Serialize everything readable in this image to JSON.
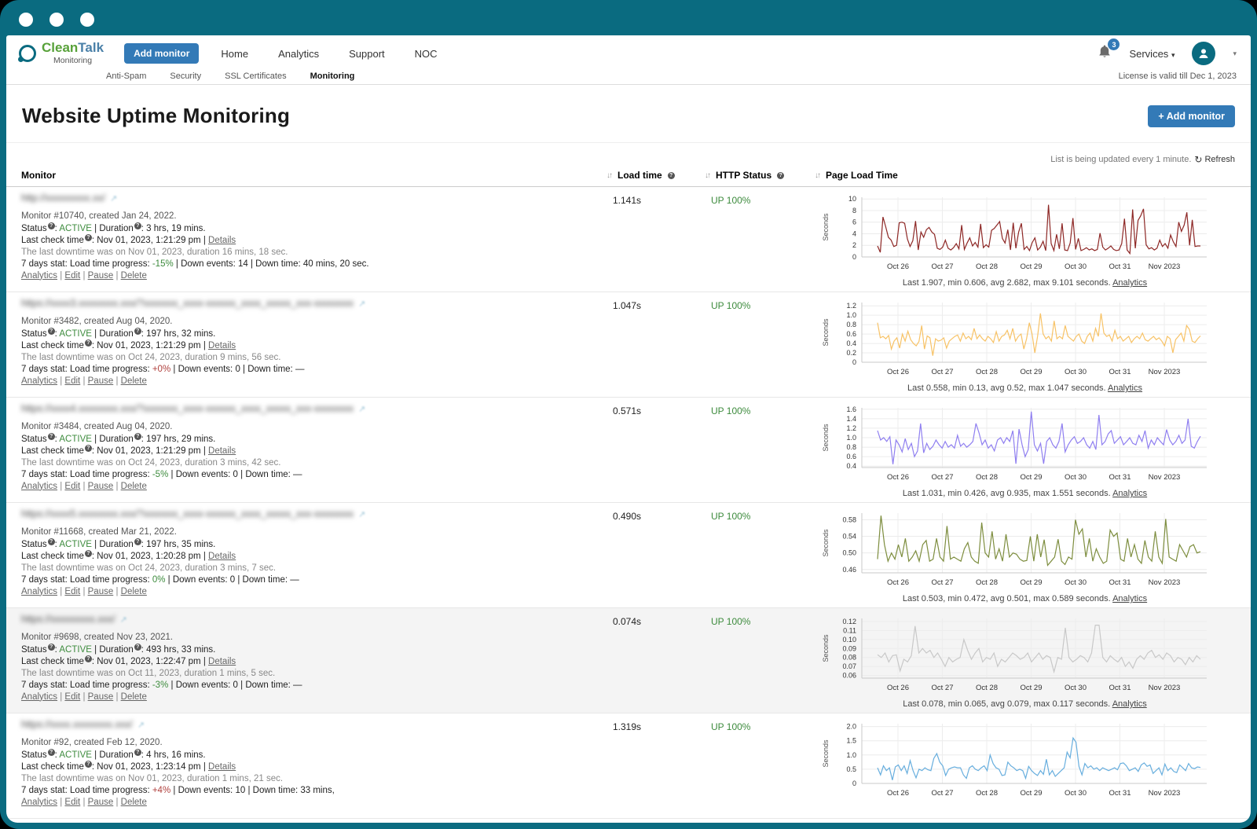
{
  "window": {
    "controls": [
      "close",
      "minimize",
      "maximize"
    ]
  },
  "icons": {
    "info": "?",
    "external_link": "↗",
    "sort": "↓↑",
    "caret": "▾",
    "plus": "+",
    "refresh": "↻",
    "bell": "bell-icon",
    "user": "user-icon"
  },
  "colors": {
    "frame": "#0a6b80",
    "accent_blue": "#337ab7",
    "brand_green": "#57a139",
    "brand_blue": "#4a80a8",
    "status_green": "#3d8b3d",
    "progress_red": "#b0413e"
  },
  "header": {
    "logo": {
      "part1": "Clean",
      "part2": "Talk",
      "subtitle": "Monitoring"
    },
    "add_monitor_button": "Add monitor",
    "nav": [
      "Home",
      "Analytics",
      "Support",
      "NOC"
    ],
    "notifications_count": "3",
    "services_label": "Services"
  },
  "subnav": {
    "items": [
      "Anti-Spam",
      "Security",
      "SSL Certificates",
      "Monitoring"
    ],
    "active": "Monitoring",
    "license_text": "License is valid till Dec 1, 2023"
  },
  "page": {
    "title": "Website Uptime Monitoring",
    "add_monitor_button": "Add monitor",
    "refresh_note": "List is being updated every 1 minute.",
    "refresh_label": "Refresh"
  },
  "table_headers": {
    "monitor": "Monitor",
    "load_time": "Load time",
    "http_status": "HTTP Status",
    "page_load": "Page Load Time"
  },
  "row_labels": {
    "status": "Status",
    "duration": "Duration",
    "last_check": "Last check time",
    "details": "Details",
    "stat_prefix": "7 days stat: Load time progress:",
    "down_events": "Down events:",
    "down_time": "Down time:",
    "links": [
      "Analytics",
      "Edit",
      "Pause",
      "Delete"
    ]
  },
  "monitors": [
    {
      "url_blur": "http://xxxxxxxxx.xx/",
      "info": "Monitor #10740, created Jan 24, 2022.",
      "status": "ACTIVE",
      "duration": "3 hrs, 19 mins.",
      "last_check": "Nov 01, 2023, 1:21:29 pm",
      "downtime": "The last downtime was on Nov 01, 2023, duration 16 mins, 18 sec.",
      "progress": "-15%",
      "progress_color": "green",
      "down_events": "14",
      "down_time": "40 mins, 20 sec.",
      "load_time": "1.141s",
      "http_status": "UP 100%",
      "highlighted": false
    },
    {
      "url_blur": "https://xxxx3.xxxxxxxx.xxx/?xxxxxxx_xxxx-xxxxxx_xxxx_xxxxx_xxx-xxxxxxxx",
      "info": "Monitor #3482, created Aug 04, 2020.",
      "status": "ACTIVE",
      "duration": "197 hrs, 32 mins.",
      "last_check": "Nov 01, 2023, 1:21:29 pm",
      "downtime": "The last downtime was on Oct 24, 2023, duration 9 mins, 56 sec.",
      "progress": "+0%",
      "progress_color": "red",
      "down_events": "0",
      "down_time": "—",
      "load_time": "1.047s",
      "http_status": "UP 100%",
      "highlighted": false
    },
    {
      "url_blur": "https://xxxx4.xxxxxxxx.xxx/?xxxxxxx_xxxx-xxxxxx_xxxx_xxxxx_xxx-xxxxxxxx",
      "info": "Monitor #3484, created Aug 04, 2020.",
      "status": "ACTIVE",
      "duration": "197 hrs, 29 mins.",
      "last_check": "Nov 01, 2023, 1:21:29 pm",
      "downtime": "The last downtime was on Oct 24, 2023, duration 3 mins, 42 sec.",
      "progress": "-5%",
      "progress_color": "green",
      "down_events": "0",
      "down_time": "—",
      "load_time": "0.571s",
      "http_status": "UP 100%",
      "highlighted": false
    },
    {
      "url_blur": "https://xxxx5.xxxxxxxx.xxx/?xxxxxxx_xxxx-xxxxxx_xxxx_xxxxx_xxx-xxxxxxxx",
      "info": "Monitor #11668, created Mar 21, 2022.",
      "status": "ACTIVE",
      "duration": "197 hrs, 35 mins.",
      "last_check": "Nov 01, 2023, 1:20:28 pm",
      "downtime": "The last downtime was on Oct 24, 2023, duration 3 mins, 7 sec.",
      "progress": "0%",
      "progress_color": "green",
      "down_events": "0",
      "down_time": "—",
      "load_time": "0.490s",
      "http_status": "UP 100%",
      "highlighted": false
    },
    {
      "url_blur": "https://xxxxxxxxx.xxx/",
      "info": "Monitor #9698, created Nov 23, 2021.",
      "status": "ACTIVE",
      "duration": "493 hrs, 33 mins.",
      "last_check": "Nov 01, 2023, 1:22:47 pm",
      "downtime": "The last downtime was on Oct 11, 2023, duration 1 mins, 5 sec.",
      "progress": "-3%",
      "progress_color": "green",
      "down_events": "0",
      "down_time": "—",
      "load_time": "0.074s",
      "http_status": "UP 100%",
      "highlighted": true
    },
    {
      "url_blur": "https://xxxx.xxxxxxxx.xxx/",
      "info": "Monitor #92, created Feb 12, 2020.",
      "status": "ACTIVE",
      "duration": "4 hrs, 16 mins.",
      "last_check": "Nov 01, 2023, 1:23:14 pm",
      "downtime": "The last downtime was on Nov 01, 2023, duration 1 mins, 21 sec.",
      "progress": "+4%",
      "progress_color": "red",
      "down_events": "10",
      "down_time": "33 mins,",
      "load_time": "1.319s",
      "http_status": "UP 100%",
      "highlighted": false
    }
  ],
  "chart_data": [
    {
      "type": "line",
      "ylabel": "Seconds",
      "categories": [
        "Oct 26",
        "Oct 27",
        "Oct 28",
        "Oct 29",
        "Oct 30",
        "Oct 31",
        "Nov 2023"
      ],
      "ylim": [
        0,
        10.3
      ],
      "yticks": [
        0,
        2,
        4,
        6,
        8,
        10
      ],
      "ytick_labels": [
        "0",
        "2",
        "4",
        "6",
        "8",
        "10"
      ],
      "color": "#8d2725",
      "values": [
        1.9,
        0.8,
        6.9,
        5.2,
        3.4,
        2.9,
        1.8,
        2.0,
        5.9,
        6.0,
        5.8,
        3.1,
        1.8,
        2.8,
        6.2,
        1.2,
        4.3,
        3.4,
        4.7,
        5.1,
        4.3,
        3.9,
        1.5,
        1.3,
        1.7,
        2.9,
        1.5,
        1.2,
        1.6,
        2.3,
        1.4,
        5.5,
        1.3,
        2.4,
        3.3,
        1.9,
        2.5,
        1.7,
        5.7,
        1.6,
        2.1,
        1.7,
        4.6,
        4.9,
        5.5,
        6.1,
        3.2,
        2.4,
        4.7,
        1.2,
        5.9,
        1.5,
        4.3,
        5.8,
        1.3,
        1.8,
        1.1,
        2.5,
        3.3,
        1.2,
        1.7,
        2.7,
        1.1,
        9.0,
        2.3,
        1.1,
        3.9,
        1.4,
        5.8,
        1.2,
        1.1,
        2.4,
        6.7,
        1.3,
        3.2,
        1.1,
        1.3,
        1.6,
        1.2,
        1.4,
        1.1,
        1.3,
        4.1,
        1.7,
        1.2,
        1.5,
        1.9,
        1.3,
        1.1,
        1.2,
        2.3,
        6.6,
        1.2,
        0.6,
        8.2,
        1.5,
        6.3,
        7.1,
        8.3,
        2.1,
        1.4,
        1.6,
        1.2,
        1.5,
        2.9,
        1.8,
        2.3,
        1.5,
        3.8,
        2.6,
        1.8,
        6.0,
        4.4,
        5.5,
        7.7,
        2.0,
        6.4,
        1.8,
        1.9,
        1.9
      ],
      "caption": "Last 1.907, min 0.606, avg 2.682, max 9.101 seconds.",
      "caption_link": "Analytics"
    },
    {
      "type": "line",
      "ylabel": "Seconds",
      "categories": [
        "Oct 26",
        "Oct 27",
        "Oct 28",
        "Oct 29",
        "Oct 30",
        "Oct 31",
        "Nov 2023"
      ],
      "ylim": [
        0,
        1.27
      ],
      "yticks": [
        0,
        0.2,
        0.4,
        0.6,
        0.8,
        1.0,
        1.2
      ],
      "ytick_labels": [
        "0",
        "0.2",
        "0.4",
        "0.6",
        "0.8",
        "1.0",
        "1.2"
      ],
      "color": "#f7c266",
      "values": [
        0.84,
        0.52,
        0.55,
        0.5,
        0.57,
        0.28,
        0.45,
        0.52,
        0.3,
        0.6,
        0.45,
        0.66,
        0.48,
        0.4,
        0.35,
        0.44,
        0.78,
        0.28,
        0.56,
        0.52,
        0.14,
        0.5,
        0.45,
        0.47,
        0.52,
        0.3,
        0.45,
        0.5,
        0.55,
        0.58,
        0.45,
        0.62,
        0.5,
        0.55,
        0.48,
        0.72,
        0.5,
        0.58,
        0.5,
        0.45,
        0.55,
        0.5,
        0.42,
        0.65,
        0.45,
        0.55,
        0.58,
        0.68,
        0.5,
        0.72,
        0.45,
        0.55,
        0.6,
        0.28,
        0.5,
        0.84,
        0.6,
        0.2,
        0.55,
        1.04,
        0.6,
        0.5,
        0.55,
        0.45,
        0.88,
        0.5,
        0.55,
        0.5,
        0.78,
        0.55,
        0.5,
        0.45,
        0.55,
        0.6,
        0.45,
        0.4,
        0.55,
        0.62,
        0.45,
        0.72,
        0.55,
        1.04,
        0.62,
        0.55,
        0.58,
        0.45,
        0.68,
        0.5,
        0.55,
        0.45,
        0.5,
        0.55,
        0.42,
        0.5,
        0.55,
        0.5,
        0.62,
        0.48,
        0.45,
        0.5,
        0.55,
        0.48,
        0.52,
        0.45,
        0.35,
        0.55,
        0.5,
        0.2,
        0.48,
        0.55,
        0.62,
        0.45,
        0.78,
        0.7,
        0.45,
        0.42,
        0.5,
        0.56
      ],
      "caption": "Last 0.558, min 0.13, avg 0.52, max 1.047 seconds.",
      "caption_link": "Analytics"
    },
    {
      "type": "line",
      "ylabel": "Seconds",
      "categories": [
        "Oct 26",
        "Oct 27",
        "Oct 28",
        "Oct 29",
        "Oct 30",
        "Oct 31",
        "Nov 2023"
      ],
      "ylim": [
        0.37,
        1.63
      ],
      "yticks": [
        0.4,
        0.6,
        0.8,
        1.0,
        1.2,
        1.4,
        1.6
      ],
      "ytick_labels": [
        "0.4",
        "0.6",
        "0.8",
        "1.0",
        "1.2",
        "1.4",
        "1.6"
      ],
      "color": "#8f7ff0",
      "values": [
        1.15,
        0.95,
        1.0,
        0.92,
        1.02,
        0.44,
        0.95,
        0.85,
        0.7,
        0.98,
        0.75,
        0.88,
        0.6,
        0.72,
        1.3,
        0.68,
        0.88,
        0.75,
        0.82,
        0.95,
        0.85,
        0.78,
        0.92,
        0.8,
        0.85,
        0.78,
        1.05,
        0.82,
        0.88,
        0.8,
        0.85,
        0.92,
        1.3,
        1.1,
        0.85,
        0.95,
        0.78,
        0.85,
        0.72,
        0.95,
        1.0,
        0.88,
        1.0,
        0.92,
        1.15,
        0.45,
        1.18,
        0.85,
        0.6,
        0.75,
        1.55,
        0.85,
        0.72,
        0.88,
        0.45,
        0.92,
        1.0,
        0.85,
        0.78,
        0.92,
        1.3,
        0.7,
        0.85,
        0.95,
        1.02,
        0.88,
        0.92,
        1.0,
        0.85,
        0.78,
        0.92,
        0.75,
        1.48,
        0.85,
        0.92,
        1.08,
        1.15,
        0.88,
        0.95,
        1.02,
        0.85,
        0.92,
        1.0,
        0.88,
        0.85,
        1.05,
        0.92,
        1.15,
        0.78,
        0.95,
        0.85,
        1.0,
        0.92,
        0.85,
        1.17,
        0.95,
        0.85,
        0.92,
        1.05,
        0.88,
        0.95,
        1.4,
        0.82,
        0.78,
        0.92,
        1.03
      ],
      "caption": "Last 1.031, min 0.426, avg 0.935, max 1.551 seconds.",
      "caption_link": "Analytics"
    },
    {
      "type": "line",
      "ylabel": "Seconds",
      "categories": [
        "Oct 26",
        "Oct 27",
        "Oct 28",
        "Oct 29",
        "Oct 30",
        "Oct 31",
        "Nov 2023"
      ],
      "ylim": [
        0.452,
        0.596
      ],
      "yticks": [
        0.46,
        0.5,
        0.54,
        0.58
      ],
      "ytick_labels": [
        "0.46",
        "0.50",
        "0.54",
        "0.58"
      ],
      "color": "#7d8d3e",
      "values": [
        0.485,
        0.59,
        0.52,
        0.48,
        0.5,
        0.485,
        0.52,
        0.49,
        0.535,
        0.48,
        0.49,
        0.505,
        0.48,
        0.52,
        0.53,
        0.48,
        0.485,
        0.535,
        0.49,
        0.48,
        0.565,
        0.485,
        0.49,
        0.485,
        0.48,
        0.51,
        0.525,
        0.49,
        0.48,
        0.475,
        0.573,
        0.5,
        0.49,
        0.552,
        0.485,
        0.51,
        0.48,
        0.545,
        0.49,
        0.5,
        0.497,
        0.485,
        0.48,
        0.482,
        0.54,
        0.48,
        0.545,
        0.49,
        0.532,
        0.47,
        0.48,
        0.49,
        0.533,
        0.48,
        0.472,
        0.49,
        0.485,
        0.58,
        0.545,
        0.558,
        0.49,
        0.535,
        0.48,
        0.51,
        0.49,
        0.475,
        0.48,
        0.555,
        0.54,
        0.548,
        0.485,
        0.48,
        0.535,
        0.49,
        0.52,
        0.485,
        0.475,
        0.53,
        0.49,
        0.48,
        0.552,
        0.49,
        0.475,
        0.582,
        0.49,
        0.485,
        0.48,
        0.52,
        0.505,
        0.49,
        0.515,
        0.52,
        0.5,
        0.503
      ],
      "caption": "Last 0.503, min 0.472, avg 0.501, max 0.589 seconds.",
      "caption_link": "Analytics"
    },
    {
      "type": "line",
      "ylabel": "Seconds",
      "categories": [
        "Oct 26",
        "Oct 27",
        "Oct 28",
        "Oct 29",
        "Oct 30",
        "Oct 31",
        "Nov 2023"
      ],
      "ylim": [
        0.057,
        0.1235
      ],
      "yticks": [
        0.06,
        0.07,
        0.08,
        0.09,
        0.1,
        0.11,
        0.12
      ],
      "ytick_labels": [
        "0.06",
        "0.07",
        "0.08",
        "0.09",
        "0.10",
        "0.11",
        "0.12"
      ],
      "color": "#c8c8c8",
      "values": [
        0.083,
        0.08,
        0.085,
        0.075,
        0.082,
        0.083,
        0.065,
        0.078,
        0.075,
        0.082,
        0.115,
        0.085,
        0.09,
        0.085,
        0.088,
        0.08,
        0.085,
        0.078,
        0.07,
        0.08,
        0.075,
        0.078,
        0.08,
        0.1,
        0.088,
        0.078,
        0.085,
        0.09,
        0.075,
        0.08,
        0.078,
        0.085,
        0.07,
        0.078,
        0.075,
        0.08,
        0.085,
        0.082,
        0.078,
        0.08,
        0.085,
        0.075,
        0.08,
        0.085,
        0.078,
        0.082,
        0.08,
        0.064,
        0.08,
        0.078,
        0.113,
        0.08,
        0.075,
        0.078,
        0.082,
        0.08,
        0.075,
        0.085,
        0.116,
        0.116,
        0.08,
        0.075,
        0.082,
        0.078,
        0.075,
        0.08,
        0.07,
        0.075,
        0.068,
        0.078,
        0.082,
        0.078,
        0.085,
        0.088,
        0.08,
        0.083,
        0.078,
        0.085,
        0.082,
        0.075,
        0.08,
        0.078,
        0.072,
        0.08,
        0.075,
        0.082,
        0.078
      ],
      "caption": "Last 0.078, min 0.065, avg 0.079, max 0.117 seconds.",
      "caption_link": "Analytics"
    },
    {
      "type": "line",
      "ylabel": "Seconds",
      "categories": [
        "Oct 26",
        "Oct 27",
        "Oct 28",
        "Oct 29",
        "Oct 30",
        "Oct 31",
        "Nov 2023"
      ],
      "ylim": [
        0,
        2.1
      ],
      "yticks": [
        0,
        0.5,
        1.0,
        1.5,
        2.0
      ],
      "ytick_labels": [
        "0",
        "0.5",
        "1.0",
        "1.5",
        "2.0"
      ],
      "color": "#67aede",
      "values": [
        0.55,
        0.3,
        0.62,
        0.45,
        0.55,
        0.12,
        0.58,
        0.65,
        0.45,
        0.62,
        0.35,
        0.8,
        0.45,
        0.2,
        0.5,
        0.45,
        0.55,
        0.48,
        0.45,
        0.88,
        1.05,
        0.75,
        0.62,
        0.28,
        0.5,
        0.55,
        0.58,
        0.55,
        0.55,
        0.3,
        0.18,
        0.55,
        0.62,
        0.5,
        0.45,
        0.55,
        0.62,
        0.45,
        1.0,
        0.7,
        0.55,
        0.5,
        0.28,
        0.3,
        0.75,
        0.62,
        0.55,
        0.45,
        0.5,
        0.45,
        0.18,
        0.6,
        0.45,
        0.35,
        0.28,
        0.45,
        0.32,
        0.85,
        0.3,
        0.45,
        0.25,
        0.35,
        0.45,
        0.55,
        1.1,
        0.9,
        1.6,
        1.45,
        0.6,
        0.3,
        0.7,
        0.55,
        0.62,
        0.5,
        0.55,
        0.45,
        0.55,
        0.5,
        0.45,
        0.5,
        0.55,
        0.48,
        0.7,
        0.72,
        0.62,
        0.45,
        0.5,
        0.55,
        0.42,
        0.65,
        0.72,
        0.6,
        0.65,
        0.35,
        0.45,
        0.55,
        0.3,
        0.68,
        0.45,
        0.55,
        0.42,
        0.38,
        0.65,
        0.55,
        0.45,
        0.7,
        0.55,
        0.52,
        0.58,
        0.56
      ],
      "caption": "",
      "caption_link": ""
    }
  ]
}
